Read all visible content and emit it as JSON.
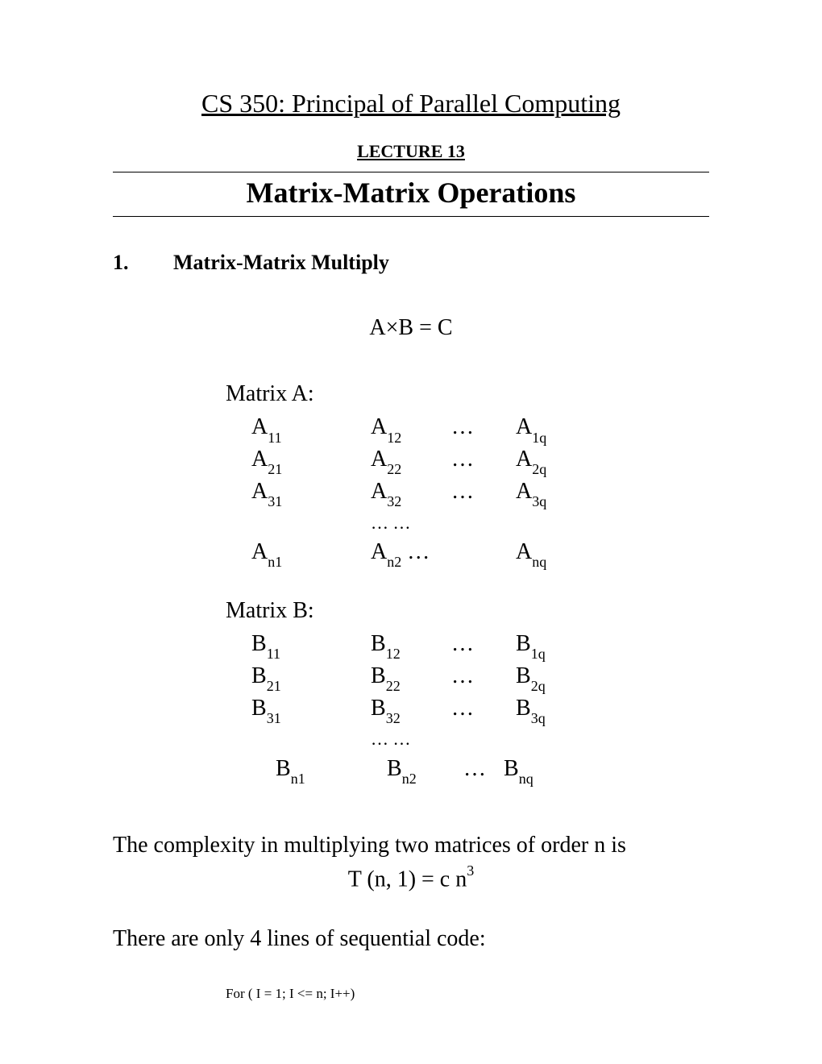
{
  "courseTitle": "CS 350: Principal of Parallel Computing",
  "lectureTitle": "LECTURE 13",
  "mainTitle": "Matrix-Matrix Operations",
  "section": {
    "number": "1.",
    "title": "Matrix-Matrix Multiply"
  },
  "equation": "A×B = C",
  "matrixA": {
    "label": "Matrix A:",
    "rows": [
      {
        "c1": {
          "b": "A",
          "s": "11"
        },
        "c2": {
          "b": "A",
          "s": "12"
        },
        "c3": "…",
        "c4": {
          "b": "A",
          "s": "1q"
        }
      },
      {
        "c1": {
          "b": "A",
          "s": "21"
        },
        "c2": {
          "b": "A",
          "s": "22"
        },
        "c3": "…",
        "c4": {
          "b": "A",
          "s": "2q"
        }
      },
      {
        "c1": {
          "b": "A",
          "s": "31"
        },
        "c2": {
          "b": "A",
          "s": "32"
        },
        "c3": "…",
        "c4": {
          "b": "A",
          "s": "3q"
        }
      }
    ],
    "dotsRow": "…       …",
    "lastRow": {
      "c1": {
        "b": "A",
        "s": "n1"
      },
      "c2": {
        "b": "A",
        "s": "n2"
      },
      "c3": "…",
      "c4": {
        "b": "A",
        "s": "nq"
      }
    }
  },
  "matrixB": {
    "label": "Matrix B:",
    "rows": [
      {
        "c1": {
          "b": "B",
          "s": "11"
        },
        "c2": {
          "b": "B",
          "s": "12"
        },
        "c3": "…",
        "c4": {
          "b": "B",
          "s": "1q"
        }
      },
      {
        "c1": {
          "b": "B",
          "s": "21"
        },
        "c2": {
          "b": "B",
          "s": "22"
        },
        "c3": "…",
        "c4": {
          "b": "B",
          "s": "2q"
        }
      },
      {
        "c1": {
          "b": "B",
          "s": "31"
        },
        "c2": {
          "b": "B",
          "s": "32"
        },
        "c3": "…",
        "c4": {
          "b": "B",
          "s": "3q"
        }
      }
    ],
    "dotsRow": "…       …",
    "lastRow": {
      "c1": {
        "b": "B",
        "s": "n1"
      },
      "c2": {
        "b": "B",
        "s": "n2"
      },
      "c3": "…",
      "c4": {
        "b": "B",
        "s": "nq"
      }
    }
  },
  "complexityText": "The complexity in multiplying two matrices of order n is",
  "complexityEq": {
    "pre": "T (n, 1) = c n",
    "sup": "3"
  },
  "codeIntro": "There are only 4 lines of sequential code:",
  "codeLine": "For ( I = 1; I <= n; I++)"
}
